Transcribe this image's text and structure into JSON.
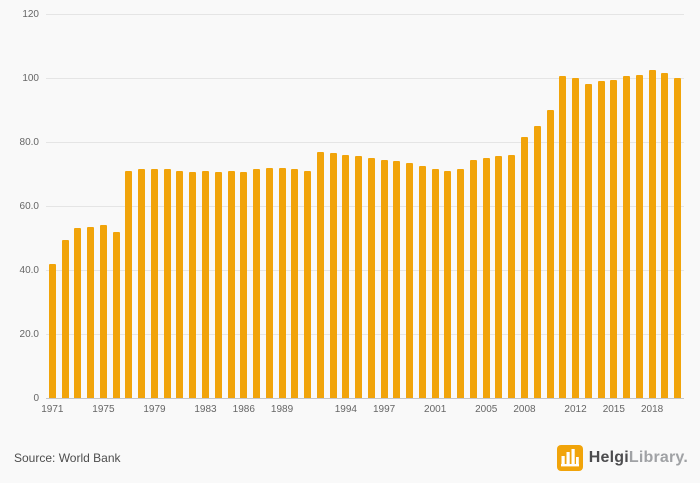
{
  "chart_data": {
    "type": "bar",
    "title": "",
    "xlabel": "",
    "ylabel": "",
    "years": [
      1971,
      1972,
      1973,
      1974,
      1975,
      1976,
      1977,
      1978,
      1979,
      1980,
      1981,
      1982,
      1983,
      1984,
      1985,
      1986,
      1987,
      1988,
      1989,
      1990,
      1991,
      1992,
      1993,
      1994,
      1995,
      1996,
      1997,
      1998,
      1999,
      2000,
      2001,
      2002,
      2003,
      2004,
      2005,
      2006,
      2007,
      2008,
      2009,
      2010,
      2011,
      2012,
      2013,
      2014,
      2015,
      2016,
      2017,
      2018,
      2019,
      2020
    ],
    "values": [
      42,
      49.5,
      53,
      53.5,
      54,
      52,
      71,
      71.5,
      71.5,
      71.5,
      71,
      70.5,
      71,
      70.5,
      71,
      70.5,
      71.5,
      72,
      72,
      71.5,
      71,
      77,
      76.5,
      76,
      75.5,
      75,
      74.5,
      74,
      73.5,
      72.5,
      71.5,
      71,
      71.5,
      74.5,
      75,
      75.5,
      76,
      81.5,
      85,
      90,
      100.5,
      100,
      98,
      99,
      99.5,
      100.5,
      101,
      102.5,
      101.5,
      100
    ],
    "ylim": [
      0,
      120
    ],
    "y_ticks": [
      {
        "value": 0,
        "label": "0"
      },
      {
        "value": 20,
        "label": "20.0"
      },
      {
        "value": 40,
        "label": "40.0"
      },
      {
        "value": 60,
        "label": "60.0"
      },
      {
        "value": 80,
        "label": "80.0"
      },
      {
        "value": 100,
        "label": "100"
      },
      {
        "value": 120,
        "label": "120"
      }
    ],
    "x_tick_labels": [
      "1971",
      "1975",
      "1979",
      "1983",
      "1986",
      "1989",
      "1994",
      "1997",
      "2001",
      "2005",
      "2008",
      "2012",
      "2015",
      "2018"
    ],
    "grid": true,
    "legend": "none",
    "bar_color": "#F1A40A",
    "grid_color": "#e5e5e5",
    "axis_color": "#c6c6c6",
    "tick_text_color": "#666666"
  },
  "footer": {
    "source_label": "Source: World Bank",
    "brand": {
      "name_primary": "Helgi",
      "name_secondary": "Library.",
      "logo_color": "#F1A40A",
      "logo_icon": "factory-icon"
    }
  }
}
